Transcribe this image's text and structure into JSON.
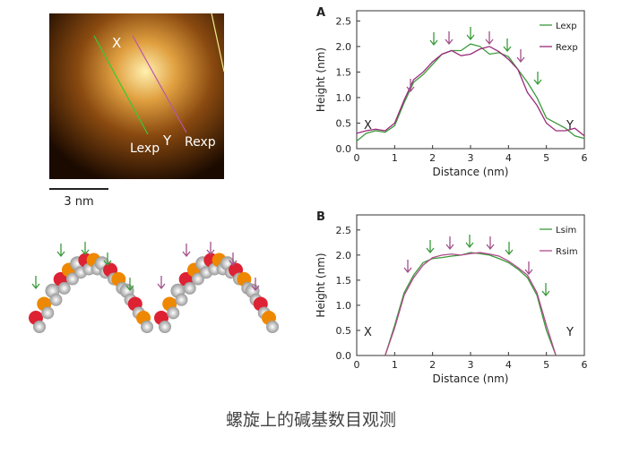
{
  "image": {
    "labels": {
      "x": "X",
      "l": "Lexp",
      "y": "Y",
      "r": "Rexp"
    },
    "scale_bar": "3 nm"
  },
  "chart_data": [
    {
      "type": "line",
      "panel": "A",
      "xlabel": "Distance (nm)",
      "ylabel": "Height (nm)",
      "annotations": [
        "X",
        "Y"
      ],
      "x": [
        0,
        0.25,
        0.5,
        0.75,
        1,
        1.25,
        1.5,
        1.75,
        2,
        2.25,
        2.5,
        2.75,
        3,
        3.25,
        3.5,
        3.75,
        4,
        4.25,
        4.5,
        4.75,
        5,
        5.25,
        5.5,
        5.75,
        6
      ],
      "series": [
        {
          "name": "Lexp",
          "color": "#3a9a3a",
          "values": [
            0.15,
            0.3,
            0.35,
            0.32,
            0.45,
            0.9,
            1.3,
            1.45,
            1.65,
            1.85,
            1.92,
            1.92,
            2.05,
            2.0,
            1.85,
            1.88,
            1.8,
            1.55,
            1.3,
            1.0,
            0.6,
            0.5,
            0.4,
            0.25,
            0.2
          ]
        },
        {
          "name": "Rexp",
          "color": "#9b2a7a",
          "values": [
            0.3,
            0.35,
            0.38,
            0.35,
            0.5,
            0.95,
            1.35,
            1.5,
            1.7,
            1.85,
            1.92,
            1.82,
            1.85,
            1.95,
            2.0,
            1.9,
            1.75,
            1.55,
            1.1,
            0.85,
            0.5,
            0.35,
            0.35,
            0.4,
            0.25
          ]
        }
      ],
      "xlim": [
        0,
        6
      ],
      "ylim": [
        0,
        2.7
      ],
      "xticks": [
        0,
        1,
        2,
        3,
        4,
        5,
        6
      ],
      "yticks": [
        {
          "value": 0,
          "label": "0.0"
        },
        0.5,
        {
          "value": 1,
          "label": "1.0"
        },
        1.5,
        {
          "value": 2,
          "label": "2.0"
        },
        2.5
      ]
    },
    {
      "type": "line",
      "panel": "B",
      "xlabel": "Distance (nm)",
      "ylabel": "Height (nm)",
      "annotations": [
        "X",
        "Y"
      ],
      "x": [
        0.5,
        0.75,
        1,
        1.25,
        1.5,
        1.75,
        2,
        2.25,
        2.5,
        2.75,
        3,
        3.25,
        3.5,
        3.75,
        4,
        4.25,
        4.5,
        4.75,
        5,
        5.25,
        5.5
      ],
      "series": [
        {
          "name": "Lsim",
          "color": "#3a9a3a",
          "values": [
            null,
            0,
            0.6,
            1.25,
            1.6,
            1.85,
            1.93,
            1.95,
            1.98,
            2.0,
            2.05,
            2.03,
            2.0,
            1.93,
            1.85,
            1.72,
            1.55,
            1.2,
            0.5,
            0,
            null
          ]
        },
        {
          "name": "Rsim",
          "color": "#b04a8a",
          "values": [
            null,
            0,
            0.55,
            1.2,
            1.55,
            1.8,
            1.95,
            2.0,
            2.02,
            2.0,
            2.03,
            2.05,
            2.02,
            1.98,
            1.88,
            1.75,
            1.6,
            1.25,
            0.6,
            0,
            null
          ]
        }
      ],
      "xlim": [
        0,
        6
      ],
      "ylim": [
        0,
        2.8
      ],
      "xticks": [
        0,
        1,
        2,
        3,
        4,
        5,
        6
      ],
      "yticks": [
        {
          "value": 0,
          "label": "0.0"
        },
        0.5,
        {
          "value": 1,
          "label": "1.0"
        },
        1.5,
        {
          "value": 2,
          "label": "2.0"
        },
        2.5
      ]
    }
  ],
  "caption": "螺旋上的碱基数目观测"
}
